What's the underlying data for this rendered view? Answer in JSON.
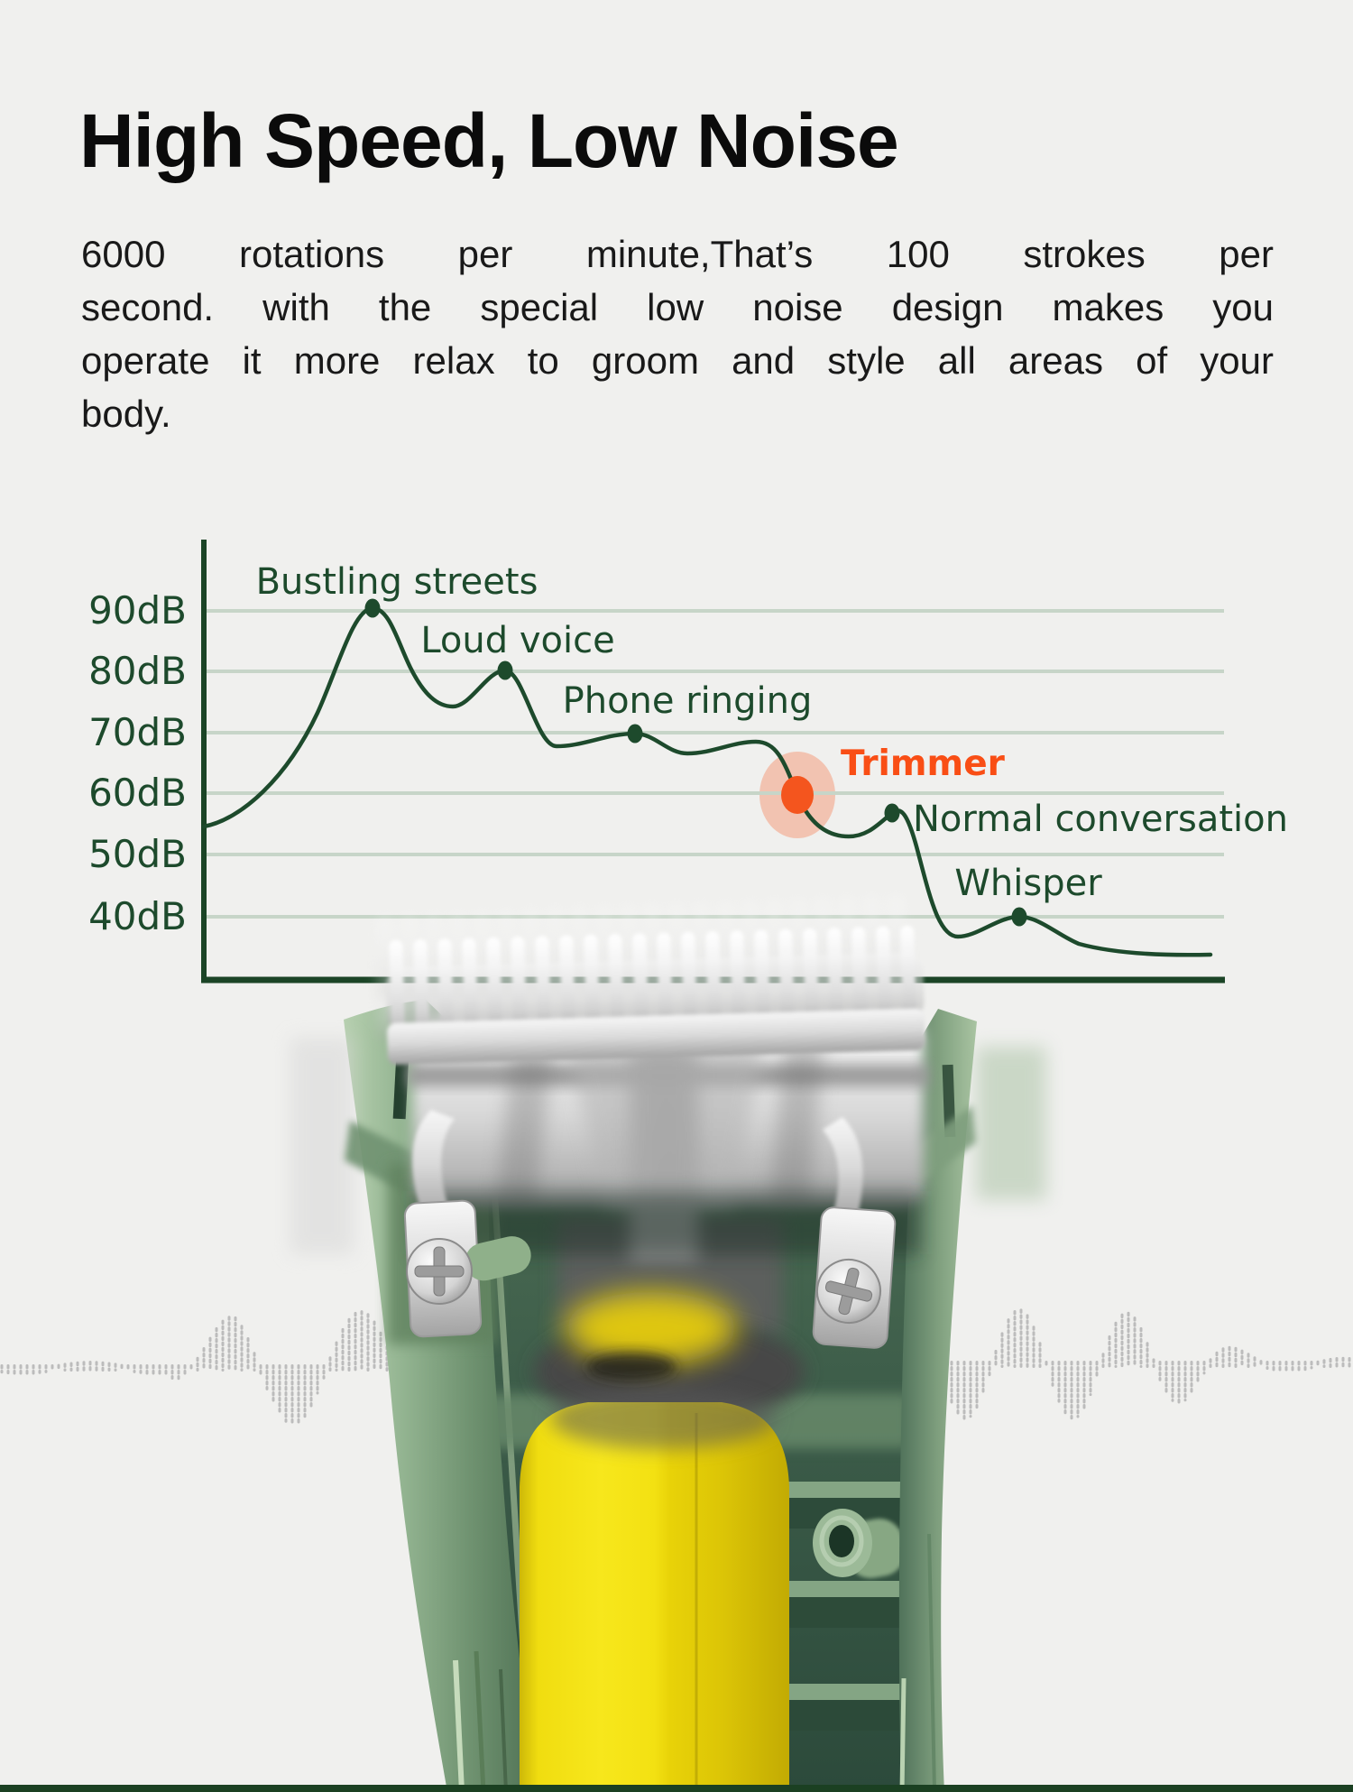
{
  "page": {
    "background_color": "#f0f0ee",
    "footer_bar_color": "#1b4022"
  },
  "header": {
    "title": "High Speed, Low Noise",
    "paragraph_lines": [
      "6000 rotations per minute,That’s 100 strokes per",
      "second. with the special low noise design makes you",
      "operate it more relax to groom and style all areas of your",
      "body."
    ]
  },
  "chart_data": {
    "type": "line",
    "unit": "dB",
    "ytick_labels": [
      "90dB",
      "80dB",
      "70dB",
      "60dB",
      "50dB",
      "40dB"
    ],
    "ylim": [
      33,
      97
    ],
    "grid": true,
    "line_color": "#1d4a2c",
    "grid_color": "#c7d5c8",
    "accent_color": "#f94e15",
    "points": [
      {
        "label": "Bustling streets",
        "value_db": 91,
        "highlighted": false
      },
      {
        "label": "Loud voice",
        "value_db": 80,
        "highlighted": false
      },
      {
        "label": "Phone ringing",
        "value_db": 70,
        "highlighted": false
      },
      {
        "label": "Trimmer",
        "value_db": 60,
        "highlighted": true
      },
      {
        "label": "Normal conversation",
        "value_db": 57,
        "highlighted": false
      },
      {
        "label": "Whisper",
        "value_db": 40,
        "highlighted": false
      }
    ],
    "curve_start_db": 54,
    "curve_end_db": 35
  },
  "product": {
    "illustration": "hair-trimmer-motor-cutaway",
    "sound_wave_color": "#bcbcbc"
  }
}
